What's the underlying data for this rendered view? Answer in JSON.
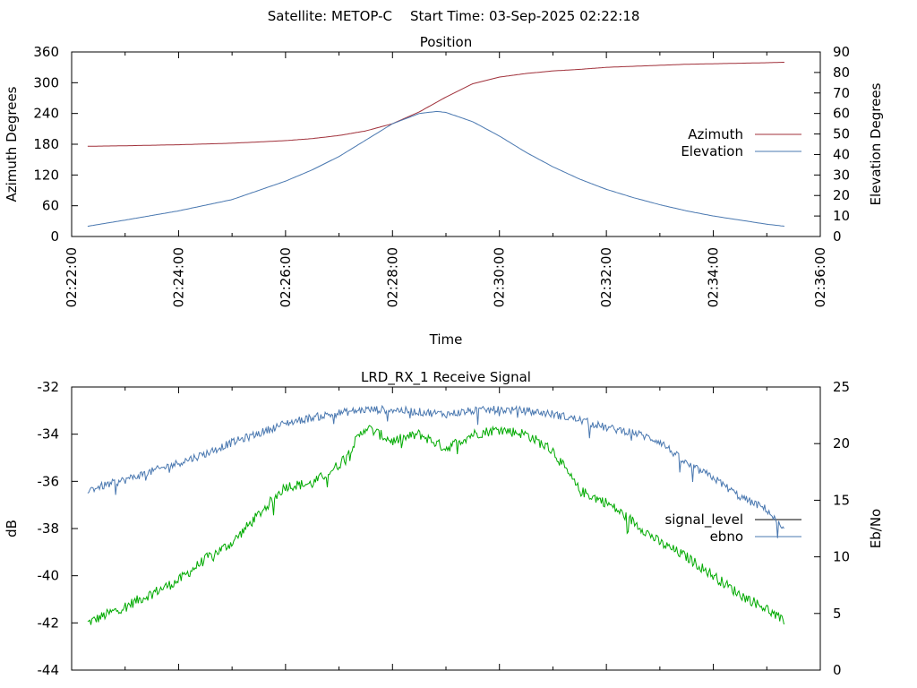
{
  "header": {
    "satellite": "Satellite: METOP-C",
    "start_time": "Start Time: 03-Sep-2025 02:22:18"
  },
  "chart_data": [
    {
      "type": "line",
      "title": "Position",
      "xlabel": "Time",
      "ylabel": "Azimuth Degrees",
      "y2label": "Elevation Degrees",
      "xlim": [
        "02:22:00",
        "02:36:00"
      ],
      "xticks": [
        "02:22:00",
        "02:24:00",
        "02:26:00",
        "02:28:00",
        "02:30:00",
        "02:32:00",
        "02:34:00",
        "02:36:00"
      ],
      "ylim": [
        0,
        360
      ],
      "yticks": [
        "0",
        "60",
        "120",
        "180",
        "240",
        "300",
        "360"
      ],
      "y2lim": [
        0,
        90
      ],
      "y2ticks": [
        "0",
        "10",
        "20",
        "30",
        "40",
        "50",
        "60",
        "70",
        "80",
        "90"
      ],
      "legend_position": "right",
      "series": [
        {
          "name": "Azimuth",
          "axis": "left",
          "color": "#a0303a",
          "x": [
            "02:22:18",
            "02:23:00",
            "02:24:00",
            "02:25:00",
            "02:26:00",
            "02:26:30",
            "02:27:00",
            "02:27:30",
            "02:28:00",
            "02:28:30",
            "02:29:00",
            "02:29:30",
            "02:30:00",
            "02:30:30",
            "02:31:00",
            "02:31:30",
            "02:32:00",
            "02:32:30",
            "02:33:00",
            "02:33:30",
            "02:34:00",
            "02:34:30",
            "02:35:00",
            "02:35:20"
          ],
          "values": [
            176,
            177,
            179,
            182,
            187,
            191,
            197,
            206,
            220,
            243,
            272,
            298,
            311,
            318,
            323,
            326,
            330,
            332,
            334,
            336,
            337,
            338,
            339,
            340
          ]
        },
        {
          "name": "Elevation",
          "axis": "right",
          "color": "#4a78b0",
          "x": [
            "02:22:18",
            "02:23:00",
            "02:24:00",
            "02:25:00",
            "02:26:00",
            "02:26:30",
            "02:27:00",
            "02:27:30",
            "02:28:00",
            "02:28:30",
            "02:28:50",
            "02:29:00",
            "02:29:30",
            "02:30:00",
            "02:30:30",
            "02:31:00",
            "02:31:30",
            "02:32:00",
            "02:32:30",
            "02:33:00",
            "02:33:30",
            "02:34:00",
            "02:34:30",
            "02:35:00",
            "02:35:20"
          ],
          "values": [
            5,
            8,
            12.5,
            18,
            27,
            32.5,
            39,
            47,
            55,
            60,
            61,
            60.5,
            56,
            49,
            41,
            34,
            28,
            23,
            19,
            15.5,
            12.5,
            10,
            8,
            6,
            5
          ]
        }
      ]
    },
    {
      "type": "line",
      "title": "LRD_RX_1 Receive Signal",
      "xlabel": "",
      "ylabel": "dB",
      "y2label": "Eb/No",
      "xlim": [
        "02:22:00",
        "02:36:00"
      ],
      "ylim": [
        -44,
        -32
      ],
      "yticks": [
        "-32",
        "-34",
        "-36",
        "-38",
        "-40",
        "-42",
        "-44"
      ],
      "y2lim": [
        0,
        25
      ],
      "y2ticks": [
        "0",
        "5",
        "10",
        "15",
        "20",
        "25"
      ],
      "legend_position": "right",
      "series": [
        {
          "name": "signal_level",
          "axis": "left",
          "color": "#00aa00",
          "legend_color": "#000000",
          "x": [
            "02:22:18",
            "02:23:00",
            "02:24:00",
            "02:24:30",
            "02:25:00",
            "02:25:30",
            "02:26:00",
            "02:26:30",
            "02:27:00",
            "02:27:30",
            "02:28:00",
            "02:28:30",
            "02:29:00",
            "02:29:30",
            "02:30:00",
            "02:30:30",
            "02:31:00",
            "02:31:30",
            "02:32:00",
            "02:32:30",
            "02:33:00",
            "02:33:30",
            "02:34:00",
            "02:34:30",
            "02:35:00",
            "02:35:20"
          ],
          "values": [
            -42.0,
            -41.3,
            -40.2,
            -39.3,
            -38.6,
            -37.4,
            -36.2,
            -36.1,
            -35.3,
            -33.7,
            -34.3,
            -34.0,
            -34.6,
            -34.0,
            -33.8,
            -34.0,
            -34.7,
            -36.4,
            -36.9,
            -37.7,
            -38.6,
            -39.2,
            -40.0,
            -40.8,
            -41.4,
            -42.0
          ]
        },
        {
          "name": "ebno",
          "axis": "right",
          "color": "#4a78b0",
          "x": [
            "02:22:18",
            "02:23:00",
            "02:24:00",
            "02:24:30",
            "02:25:00",
            "02:25:30",
            "02:26:00",
            "02:26:30",
            "02:27:00",
            "02:27:30",
            "02:28:00",
            "02:28:30",
            "02:29:00",
            "02:29:30",
            "02:30:00",
            "02:30:30",
            "02:31:00",
            "02:31:30",
            "02:32:00",
            "02:32:30",
            "02:33:00",
            "02:33:30",
            "02:34:00",
            "02:34:30",
            "02:35:00",
            "02:35:20"
          ],
          "values": [
            15.9,
            16.8,
            18.3,
            19.1,
            20.1,
            20.9,
            21.8,
            22.3,
            22.7,
            23.0,
            23.0,
            22.8,
            22.6,
            22.9,
            23.0,
            22.9,
            22.6,
            22.1,
            21.4,
            21.0,
            20.2,
            18.2,
            17.0,
            15.3,
            14.2,
            12.2
          ]
        }
      ]
    }
  ]
}
